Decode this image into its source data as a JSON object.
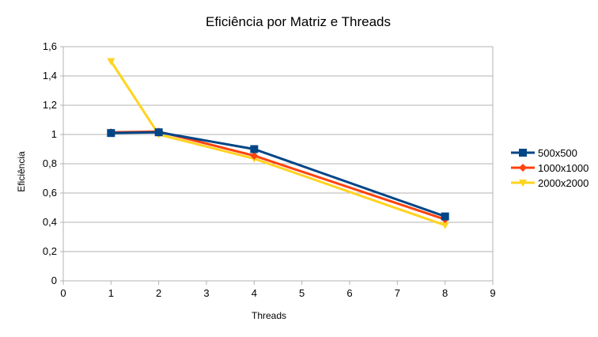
{
  "chart_data": {
    "type": "line",
    "title": "Eficiência por Matriz e Threads",
    "xlabel": "Threads",
    "ylabel": "Eficiência",
    "xlim": [
      0,
      9
    ],
    "ylim": [
      0,
      1.6
    ],
    "x_ticks": [
      "0",
      "1",
      "2",
      "3",
      "4",
      "5",
      "6",
      "7",
      "8",
      "9"
    ],
    "y_ticks": [
      "0",
      "0,2",
      "0,4",
      "0,6",
      "0,8",
      "1",
      "1,2",
      "1,4",
      "1,6"
    ],
    "x_categories": [
      "1",
      "2",
      "4",
      "8"
    ],
    "grid": true,
    "legend_position": "right",
    "series": [
      {
        "name": "500x500",
        "color": "#004586",
        "marker": "square",
        "values": [
          1.01,
          1.015,
          0.9,
          0.44
        ]
      },
      {
        "name": "1000x1000",
        "color": "#ff420e",
        "marker": "diamond",
        "values": [
          1.015,
          1.02,
          0.855,
          0.42
        ]
      },
      {
        "name": "2000x2000",
        "color": "#ffd320",
        "marker": "triangle-down",
        "values": [
          1.5,
          1.0,
          0.835,
          0.38
        ]
      }
    ]
  }
}
